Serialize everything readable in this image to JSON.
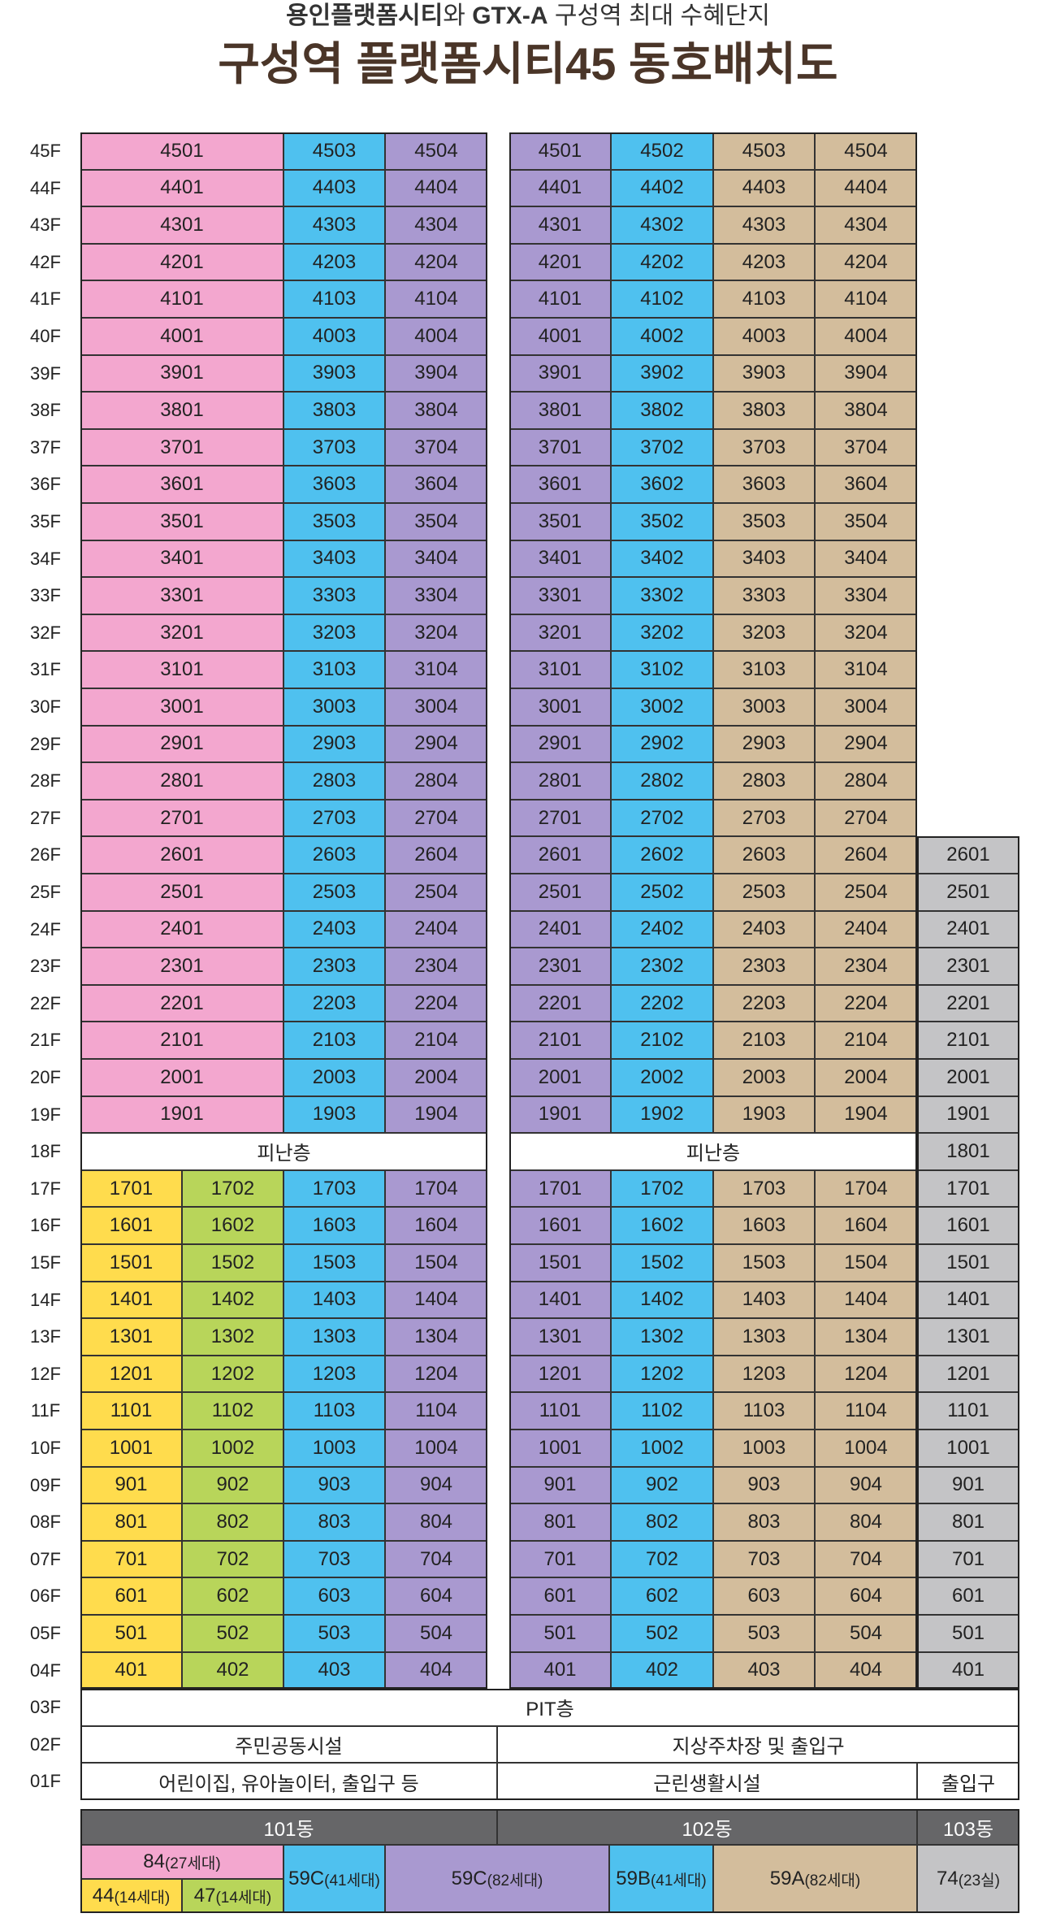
{
  "header": {
    "subtitle_bold1": "용인플랫폼시티",
    "subtitle_mid": "와 ",
    "subtitle_bold2": "GTX-A",
    "subtitle_rest": " 구성역 최대 수혜단지",
    "title": "구성역 플랫폼시티45 동호배치도"
  },
  "colors": {
    "pink": "#f3a7cf",
    "blue": "#4fc1ef",
    "purple": "#a999d0",
    "tan": "#d3bd9c",
    "gray": "#c4c4c6",
    "yellow": "#ffdc4d",
    "green": "#b8d55a",
    "title": "#4a3528"
  },
  "floors": [
    "45F",
    "44F",
    "43F",
    "42F",
    "41F",
    "40F",
    "39F",
    "38F",
    "37F",
    "36F",
    "35F",
    "34F",
    "33F",
    "32F",
    "31F",
    "30F",
    "29F",
    "28F",
    "27F",
    "26F",
    "25F",
    "24F",
    "23F",
    "22F",
    "21F",
    "20F",
    "19F",
    "18F",
    "17F",
    "16F",
    "15F",
    "14F",
    "13F",
    "12F",
    "11F",
    "10F",
    "09F",
    "08F",
    "07F",
    "06F",
    "05F",
    "04F",
    "03F",
    "02F",
    "01F"
  ],
  "refuge_label": "피난층",
  "bottom": {
    "pit": "PIT층",
    "f2_left": "주민공동시설",
    "f2_right": "지상주차장 및 출입구",
    "f1_left": "어린이집, 유아놀이터, 출입구 등",
    "f1_mid": "근린생활시설",
    "f1_right": "출입구"
  },
  "legend": {
    "b101": "101동",
    "b102": "102동",
    "b103": "103동",
    "t84": "84",
    "t84_n": "(27세대)",
    "t44": "44",
    "t44_n": "(14세대)",
    "t47": "47",
    "t47_n": "(14세대)",
    "t59c_101": "59C",
    "t59c_101_n": "(41세대)",
    "t59c_102": "59C",
    "t59c_102_n": "(82세대)",
    "t59b": "59B",
    "t59b_n": "(41세대)",
    "t59a": "59A",
    "t59a_n": "(82세대)",
    "t74": "74",
    "t74_n": "(23실)"
  }
}
